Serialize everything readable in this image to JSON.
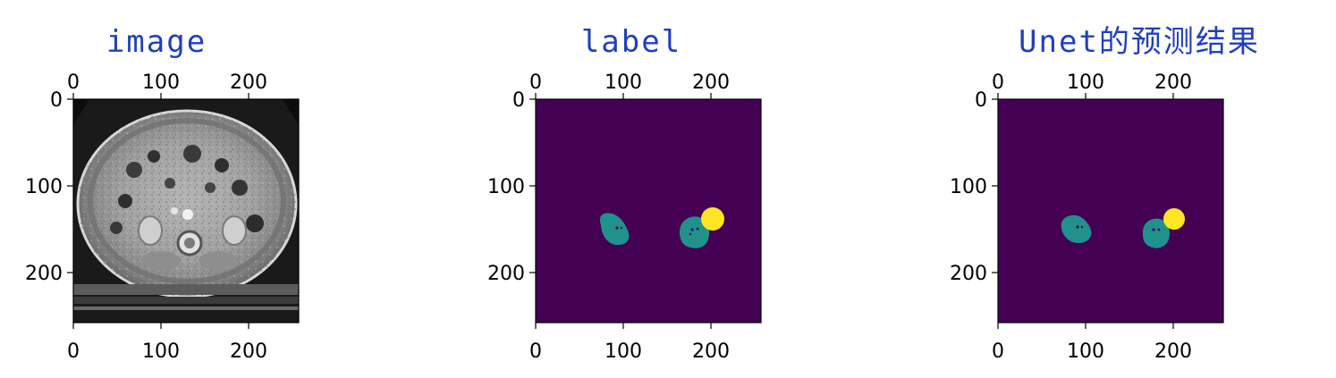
{
  "figure": {
    "panels": [
      {
        "title": "image",
        "kind": "ct-scan",
        "x_ticks": [
          "0",
          "100",
          "200"
        ],
        "y_ticks": [
          "0",
          "100",
          "200"
        ],
        "extent": [
          0,
          256
        ]
      },
      {
        "title": "label",
        "kind": "segmentation",
        "x_ticks": [
          "0",
          "100",
          "200"
        ],
        "y_ticks": [
          "0",
          "100",
          "200"
        ],
        "extent": [
          0,
          256
        ]
      },
      {
        "title": "Unet的预测结果",
        "kind": "segmentation",
        "x_ticks": [
          "0",
          "100",
          "200"
        ],
        "y_ticks": [
          "0",
          "100",
          "200"
        ],
        "extent": [
          0,
          256
        ]
      }
    ],
    "colors": {
      "title": "#1f3fbf",
      "background_class": "#440154",
      "kidney_class": "#21918c",
      "tumor_class": "#fde725",
      "tick_text": "#000000"
    }
  }
}
